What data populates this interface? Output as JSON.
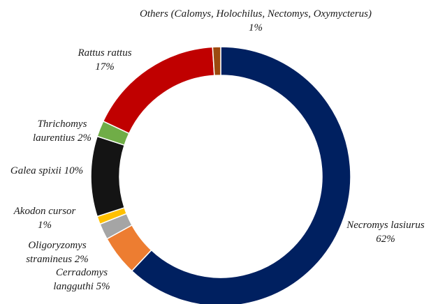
{
  "chart_data": {
    "type": "donut",
    "slices": [
      {
        "name": "Necromys lasiurus",
        "value": 62,
        "label_lines": [
          "Necromys lasiurus",
          "62%"
        ],
        "color": "#002060"
      },
      {
        "name": "Cerradomys langguthi",
        "value": 5,
        "label_lines": [
          "Cerradomys",
          "langguthi 5%"
        ],
        "color": "#ED7D31"
      },
      {
        "name": "Oligoryzomys stramineus",
        "value": 2,
        "label_lines": [
          "Oligoryzomys",
          "stramineus 2%"
        ],
        "color": "#A5A5A5"
      },
      {
        "name": "Akodon cursor",
        "value": 1,
        "label_lines": [
          "Akodon cursor",
          "1%"
        ],
        "color": "#FFC000"
      },
      {
        "name": "Galea spixii",
        "value": 10,
        "label_lines": [
          "Galea spixii 10%"
        ],
        "color": "#141414"
      },
      {
        "name": "Thrichomys laurentius",
        "value": 2,
        "label_lines": [
          "Thrichomys",
          "laurentius 2%"
        ],
        "color": "#70AD47"
      },
      {
        "name": "Rattus rattus",
        "value": 17,
        "label_lines": [
          "Rattus rattus",
          "17%"
        ],
        "color": "#C00000"
      },
      {
        "name": "Others (Calomys, Holochilus, Nectomys, Oxymycterus)",
        "value": 1,
        "label_lines": [
          "Others (Calomys, Holochilus, Nectomys, Oxymycterus)",
          "1%"
        ],
        "color": "#9C4A0F"
      }
    ]
  }
}
